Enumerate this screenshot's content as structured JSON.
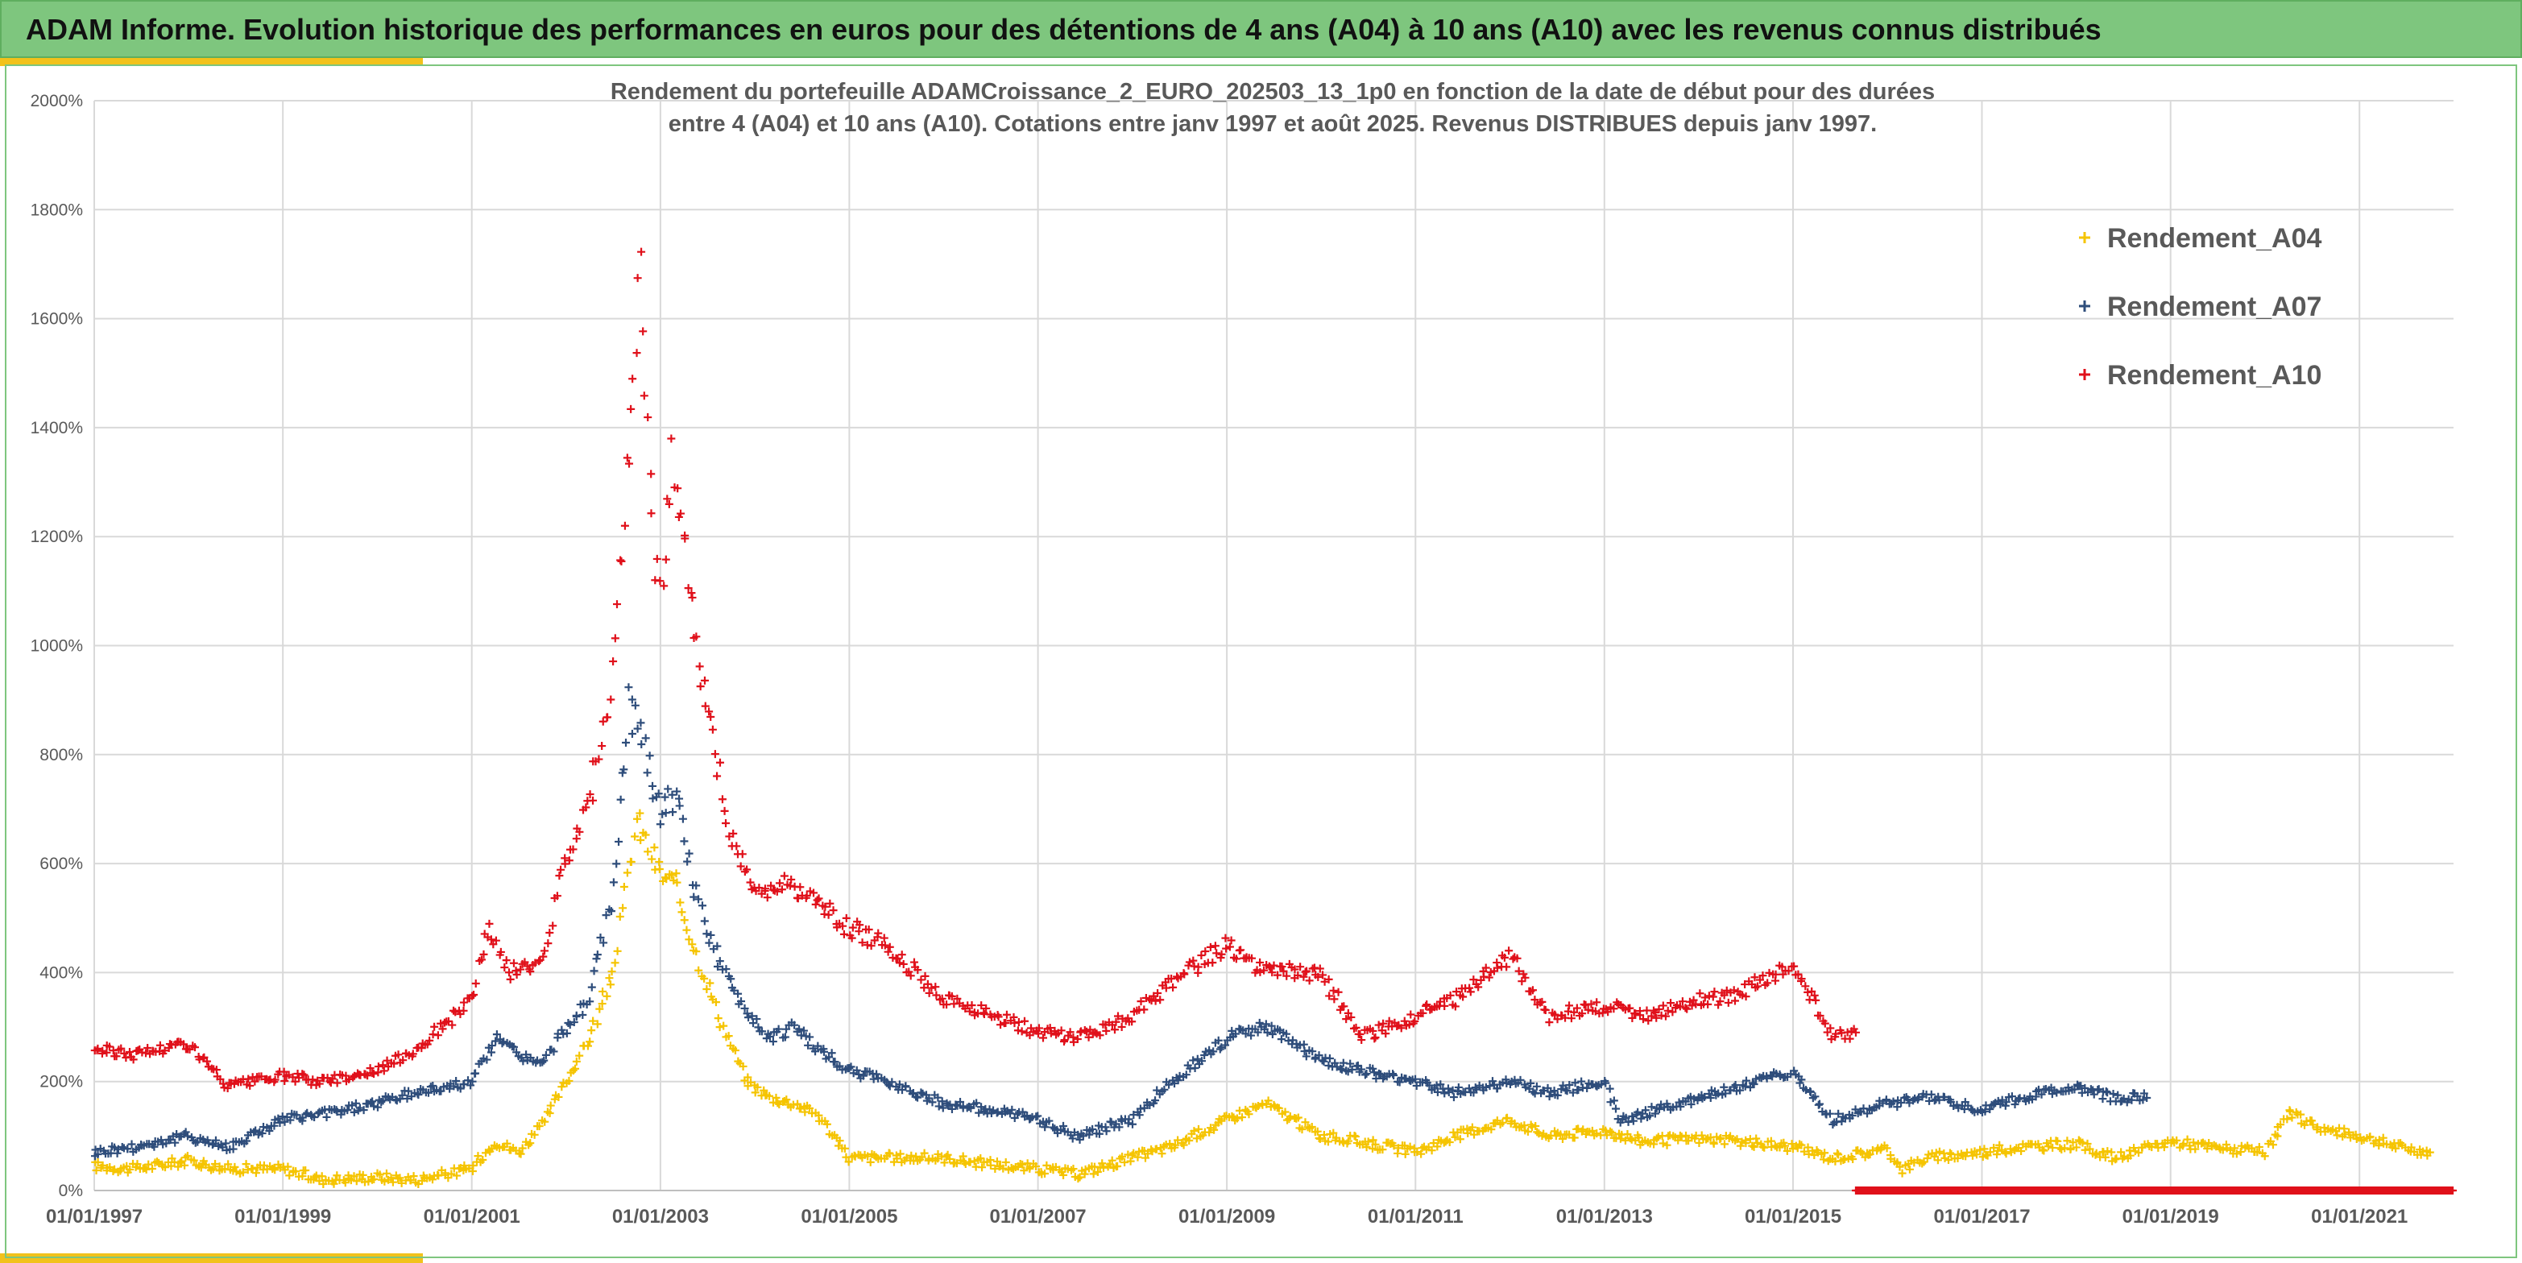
{
  "header": {
    "title": "ADAM Informe. Evolution historique des performances en euros pour des détentions de 4 ans (A04) à 10 ans (A10) avec les revenus connus distribués"
  },
  "colors": {
    "banner": "#7ec67e",
    "accent": "#f2c21b",
    "A04": "#f5c400",
    "A07": "#2e4d7b",
    "A10": "#e0101a"
  },
  "chart_data": {
    "type": "scatter",
    "title_line1": "Rendement du portefeuille ADAMCroissance_2_EURO_202503_13_1p0  en fonction de la date de début pour des durées",
    "title_line2": "entre 4 (A04) et 10 ans (A10). Cotations entre janv 1997 et août 2025. Revenus DISTRIBUES depuis janv 1997.",
    "x_axis": {
      "type": "date",
      "range": [
        "1997-01-01",
        "2021-12-31"
      ],
      "tick_labels": [
        "01/01/1997",
        "01/01/1999",
        "01/01/2001",
        "01/01/2003",
        "01/01/2005",
        "01/01/2007",
        "01/01/2009",
        "01/01/2011",
        "01/01/2013",
        "01/01/2015",
        "01/01/2017",
        "01/01/2019",
        "01/01/2021"
      ]
    },
    "y_axis": {
      "range": [
        0,
        2000
      ],
      "unit": "%",
      "tick_labels": [
        "0%",
        "200%",
        "400%",
        "600%",
        "800%",
        "1000%",
        "1200%",
        "1400%",
        "1600%",
        "1800%",
        "2000%"
      ]
    },
    "grid": true,
    "legend_position": "top-right",
    "series": [
      {
        "name": "Rendement_A04",
        "marker": "+",
        "points": [
          [
            "1997-01-01",
            45
          ],
          [
            "1997-06-01",
            40
          ],
          [
            "1998-01-01",
            55
          ],
          [
            "1998-06-01",
            40
          ],
          [
            "1999-01-01",
            40
          ],
          [
            "1999-06-01",
            20
          ],
          [
            "2000-01-01",
            25
          ],
          [
            "2000-06-01",
            20
          ],
          [
            "2001-01-01",
            40
          ],
          [
            "2001-04-01",
            90
          ],
          [
            "2001-07-01",
            70
          ],
          [
            "2001-10-01",
            120
          ],
          [
            "2002-01-01",
            200
          ],
          [
            "2002-04-01",
            280
          ],
          [
            "2002-07-01",
            400
          ],
          [
            "2002-10-01",
            680
          ],
          [
            "2003-01-01",
            580
          ],
          [
            "2003-03-01",
            560
          ],
          [
            "2003-06-01",
            420
          ],
          [
            "2003-09-01",
            300
          ],
          [
            "2003-12-01",
            200
          ],
          [
            "2004-03-01",
            170
          ],
          [
            "2004-06-01",
            160
          ],
          [
            "2004-09-01",
            140
          ],
          [
            "2005-01-01",
            60
          ],
          [
            "2005-06-01",
            60
          ],
          [
            "2006-01-01",
            60
          ],
          [
            "2006-06-01",
            50
          ],
          [
            "2007-01-01",
            40
          ],
          [
            "2007-06-01",
            30
          ],
          [
            "2008-01-01",
            60
          ],
          [
            "2008-06-01",
            80
          ],
          [
            "2009-01-01",
            130
          ],
          [
            "2009-06-01",
            160
          ],
          [
            "2010-01-01",
            100
          ],
          [
            "2010-06-01",
            90
          ],
          [
            "2011-01-01",
            70
          ],
          [
            "2011-06-01",
            100
          ],
          [
            "2012-01-01",
            130
          ],
          [
            "2012-06-01",
            100
          ],
          [
            "2013-01-01",
            110
          ],
          [
            "2013-06-01",
            90
          ],
          [
            "2014-01-01",
            95
          ],
          [
            "2014-06-01",
            90
          ],
          [
            "2015-01-01",
            80
          ],
          [
            "2015-06-01",
            60
          ],
          [
            "2016-01-01",
            75
          ],
          [
            "2016-03-01",
            40
          ],
          [
            "2016-06-01",
            60
          ],
          [
            "2017-01-01",
            70
          ],
          [
            "2017-06-01",
            80
          ],
          [
            "2018-01-01",
            85
          ],
          [
            "2018-06-01",
            60
          ],
          [
            "2019-01-01",
            90
          ],
          [
            "2019-06-01",
            80
          ],
          [
            "2020-01-01",
            70
          ],
          [
            "2020-04-01",
            140
          ],
          [
            "2020-09-01",
            110
          ],
          [
            "2021-01-01",
            100
          ],
          [
            "2021-06-01",
            80
          ],
          [
            "2021-10-01",
            70
          ]
        ]
      },
      {
        "name": "Rendement_A07",
        "marker": "+",
        "points": [
          [
            "1997-01-01",
            70
          ],
          [
            "1997-06-01",
            80
          ],
          [
            "1998-01-01",
            100
          ],
          [
            "1998-06-01",
            80
          ],
          [
            "1999-01-01",
            130
          ],
          [
            "1999-06-01",
            140
          ],
          [
            "2000-01-01",
            160
          ],
          [
            "2000-06-01",
            180
          ],
          [
            "2001-01-01",
            200
          ],
          [
            "2001-04-01",
            280
          ],
          [
            "2001-07-01",
            250
          ],
          [
            "2001-10-01",
            230
          ],
          [
            "2002-01-01",
            300
          ],
          [
            "2002-04-01",
            350
          ],
          [
            "2002-07-01",
            550
          ],
          [
            "2002-09-01",
            900
          ],
          [
            "2002-11-01",
            800
          ],
          [
            "2003-01-01",
            700
          ],
          [
            "2003-03-01",
            720
          ],
          [
            "2003-06-01",
            520
          ],
          [
            "2003-09-01",
            400
          ],
          [
            "2003-12-01",
            330
          ],
          [
            "2004-03-01",
            280
          ],
          [
            "2004-06-01",
            300
          ],
          [
            "2004-09-01",
            260
          ],
          [
            "2005-01-01",
            220
          ],
          [
            "2005-06-01",
            200
          ],
          [
            "2006-01-01",
            160
          ],
          [
            "2006-06-01",
            150
          ],
          [
            "2007-01-01",
            130
          ],
          [
            "2007-06-01",
            100
          ],
          [
            "2008-01-01",
            130
          ],
          [
            "2008-06-01",
            200
          ],
          [
            "2009-01-01",
            280
          ],
          [
            "2009-06-01",
            300
          ],
          [
            "2010-01-01",
            240
          ],
          [
            "2010-06-01",
            220
          ],
          [
            "2011-01-01",
            200
          ],
          [
            "2011-06-01",
            180
          ],
          [
            "2012-01-01",
            200
          ],
          [
            "2012-06-01",
            180
          ],
          [
            "2013-01-01",
            200
          ],
          [
            "2013-03-01",
            130
          ],
          [
            "2013-06-01",
            140
          ],
          [
            "2014-01-01",
            170
          ],
          [
            "2014-06-01",
            190
          ],
          [
            "2015-01-01",
            220
          ],
          [
            "2015-06-01",
            130
          ],
          [
            "2016-01-01",
            160
          ],
          [
            "2016-06-01",
            170
          ],
          [
            "2017-01-01",
            150
          ],
          [
            "2017-06-01",
            170
          ],
          [
            "2018-01-01",
            190
          ],
          [
            "2018-06-01",
            170
          ],
          [
            "2018-10-01",
            170
          ]
        ]
      },
      {
        "name": "Rendement_A10",
        "marker": "+",
        "points": [
          [
            "1997-01-01",
            260
          ],
          [
            "1997-06-01",
            250
          ],
          [
            "1998-01-01",
            270
          ],
          [
            "1998-06-01",
            190
          ],
          [
            "1999-01-01",
            210
          ],
          [
            "1999-06-01",
            200
          ],
          [
            "2000-01-01",
            220
          ],
          [
            "2000-06-01",
            260
          ],
          [
            "2001-01-01",
            350
          ],
          [
            "2001-03-01",
            480
          ],
          [
            "2001-06-01",
            400
          ],
          [
            "2001-10-01",
            420
          ],
          [
            "2002-01-01",
            620
          ],
          [
            "2002-04-01",
            720
          ],
          [
            "2002-07-01",
            950
          ],
          [
            "2002-09-01",
            1350
          ],
          [
            "2002-10-15",
            1720
          ],
          [
            "2002-12-01",
            1200
          ],
          [
            "2003-01-01",
            1100
          ],
          [
            "2003-02-15",
            1350
          ],
          [
            "2003-04-01",
            1200
          ],
          [
            "2003-06-01",
            950
          ],
          [
            "2003-08-01",
            800
          ],
          [
            "2003-10-01",
            650
          ],
          [
            "2004-01-01",
            550
          ],
          [
            "2004-06-01",
            560
          ],
          [
            "2005-01-01",
            480
          ],
          [
            "2005-06-01",
            450
          ],
          [
            "2006-01-01",
            350
          ],
          [
            "2006-06-01",
            330
          ],
          [
            "2007-01-01",
            290
          ],
          [
            "2007-06-01",
            280
          ],
          [
            "2008-01-01",
            320
          ],
          [
            "2008-06-01",
            380
          ],
          [
            "2009-01-01",
            450
          ],
          [
            "2009-06-01",
            400
          ],
          [
            "2010-01-01",
            400
          ],
          [
            "2010-06-01",
            280
          ],
          [
            "2011-01-01",
            320
          ],
          [
            "2011-06-01",
            350
          ],
          [
            "2012-01-01",
            430
          ],
          [
            "2012-06-01",
            320
          ],
          [
            "2013-01-01",
            340
          ],
          [
            "2013-06-01",
            320
          ],
          [
            "2014-01-01",
            350
          ],
          [
            "2014-06-01",
            360
          ],
          [
            "2015-01-01",
            420
          ],
          [
            "2015-06-01",
            280
          ],
          [
            "2015-09-01",
            290
          ]
        ]
      }
    ]
  }
}
